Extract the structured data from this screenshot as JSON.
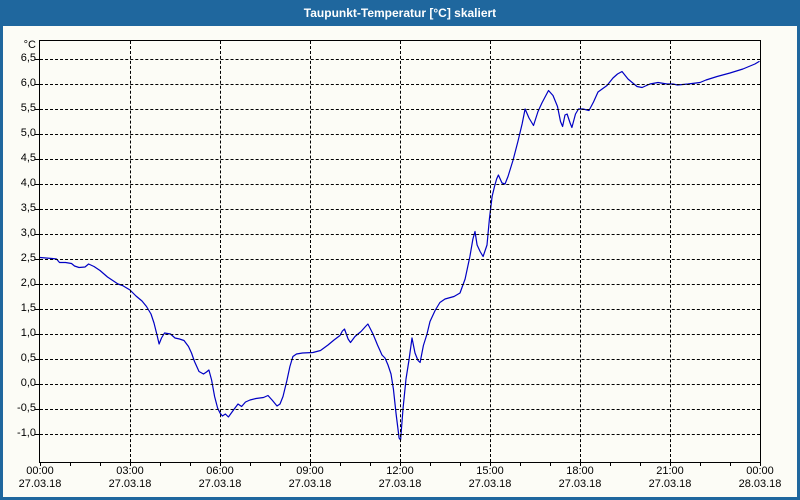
{
  "window": {
    "title": "Taupunkt-Temperatur [°C] skaliert"
  },
  "colors": {
    "titlebar_bg": "#1f679e",
    "window_border": "#1f679e",
    "content_bg": "#fcfcf6",
    "curve": "#0000c4",
    "grid": "#000000",
    "text": "#000000",
    "title_text": "#ffffff"
  },
  "chart_data": {
    "type": "line",
    "title": "Taupunkt-Temperatur [°C] skaliert",
    "ylabel": "°C",
    "xlabel": "",
    "grid": "dashed",
    "legend_position": "none",
    "ylim": [
      -1.56,
      6.86
    ],
    "xlim_hours": [
      0,
      24
    ],
    "y_axis": {
      "tick_values": [
        6.5,
        6.0,
        5.5,
        5.0,
        4.5,
        4.0,
        3.5,
        3.0,
        2.5,
        2.0,
        1.5,
        1.0,
        0.5,
        0.0,
        -0.5,
        -1.0
      ],
      "decimal_separator": ",",
      "unit": "°C"
    },
    "x_axis": {
      "minor_tick_interval_hours": 1,
      "major_ticks": [
        {
          "hour": 0,
          "time": "00:00",
          "date": "27.03.18"
        },
        {
          "hour": 3,
          "time": "03:00",
          "date": "27.03.18"
        },
        {
          "hour": 6,
          "time": "06:00",
          "date": "27.03.18"
        },
        {
          "hour": 9,
          "time": "09:00",
          "date": "27.03.18"
        },
        {
          "hour": 12,
          "time": "12:00",
          "date": "27.03.18"
        },
        {
          "hour": 15,
          "time": "15:00",
          "date": "27.03.18"
        },
        {
          "hour": 18,
          "time": "18:00",
          "date": "27.03.18"
        },
        {
          "hour": 21,
          "time": "21:00",
          "date": "27.03.18"
        },
        {
          "hour": 24,
          "time": "00:00",
          "date": "28.03.18"
        }
      ]
    },
    "series": [
      {
        "name": "Taupunkt-Temperatur",
        "unit": "°C",
        "color": "#0000c4",
        "points_hour_degC": [
          [
            0,
            2.53
          ],
          [
            0.4,
            2.51
          ],
          [
            0.55,
            2.5
          ],
          [
            0.65,
            2.43
          ],
          [
            0.85,
            2.43
          ],
          [
            1.05,
            2.41
          ],
          [
            1.15,
            2.36
          ],
          [
            1.3,
            2.33
          ],
          [
            1.5,
            2.34
          ],
          [
            1.62,
            2.4
          ],
          [
            1.8,
            2.35
          ],
          [
            2.0,
            2.27
          ],
          [
            2.25,
            2.14
          ],
          [
            2.45,
            2.06
          ],
          [
            2.6,
            2.0
          ],
          [
            2.75,
            1.97
          ],
          [
            3.0,
            1.88
          ],
          [
            3.2,
            1.76
          ],
          [
            3.4,
            1.66
          ],
          [
            3.55,
            1.55
          ],
          [
            3.7,
            1.4
          ],
          [
            3.8,
            1.22
          ],
          [
            3.9,
            0.98
          ],
          [
            3.97,
            0.8
          ],
          [
            4.05,
            0.92
          ],
          [
            4.15,
            1.02
          ],
          [
            4.35,
            1.0
          ],
          [
            4.5,
            0.92
          ],
          [
            4.65,
            0.9
          ],
          [
            4.8,
            0.87
          ],
          [
            4.95,
            0.75
          ],
          [
            5.05,
            0.62
          ],
          [
            5.15,
            0.45
          ],
          [
            5.3,
            0.25
          ],
          [
            5.45,
            0.2
          ],
          [
            5.55,
            0.24
          ],
          [
            5.63,
            0.28
          ],
          [
            5.72,
            0.08
          ],
          [
            5.82,
            -0.25
          ],
          [
            5.92,
            -0.48
          ],
          [
            6.0,
            -0.58
          ],
          [
            6.08,
            -0.64
          ],
          [
            6.18,
            -0.6
          ],
          [
            6.28,
            -0.66
          ],
          [
            6.45,
            -0.52
          ],
          [
            6.6,
            -0.4
          ],
          [
            6.72,
            -0.45
          ],
          [
            6.85,
            -0.36
          ],
          [
            7.0,
            -0.32
          ],
          [
            7.2,
            -0.29
          ],
          [
            7.45,
            -0.27
          ],
          [
            7.6,
            -0.23
          ],
          [
            7.75,
            -0.33
          ],
          [
            7.9,
            -0.44
          ],
          [
            8.0,
            -0.4
          ],
          [
            8.1,
            -0.25
          ],
          [
            8.23,
            0.07
          ],
          [
            8.33,
            0.35
          ],
          [
            8.43,
            0.55
          ],
          [
            8.55,
            0.6
          ],
          [
            8.75,
            0.62
          ],
          [
            9.1,
            0.63
          ],
          [
            9.35,
            0.67
          ],
          [
            9.6,
            0.78
          ],
          [
            9.8,
            0.88
          ],
          [
            10.0,
            0.97
          ],
          [
            10.08,
            1.06
          ],
          [
            10.15,
            1.1
          ],
          [
            10.27,
            0.9
          ],
          [
            10.35,
            0.83
          ],
          [
            10.5,
            0.95
          ],
          [
            10.7,
            1.05
          ],
          [
            10.85,
            1.15
          ],
          [
            10.93,
            1.2
          ],
          [
            11.1,
            1.0
          ],
          [
            11.25,
            0.78
          ],
          [
            11.4,
            0.58
          ],
          [
            11.5,
            0.52
          ],
          [
            11.6,
            0.38
          ],
          [
            11.7,
            0.2
          ],
          [
            11.78,
            -0.1
          ],
          [
            11.87,
            -0.6
          ],
          [
            11.97,
            -1.08
          ],
          [
            12.02,
            -1.12
          ],
          [
            12.1,
            -0.5
          ],
          [
            12.2,
            0.1
          ],
          [
            12.3,
            0.48
          ],
          [
            12.4,
            0.92
          ],
          [
            12.5,
            0.62
          ],
          [
            12.6,
            0.47
          ],
          [
            12.67,
            0.43
          ],
          [
            12.78,
            0.77
          ],
          [
            12.9,
            1.0
          ],
          [
            13.0,
            1.25
          ],
          [
            13.17,
            1.47
          ],
          [
            13.33,
            1.63
          ],
          [
            13.5,
            1.7
          ],
          [
            13.8,
            1.75
          ],
          [
            14.0,
            1.82
          ],
          [
            14.17,
            2.1
          ],
          [
            14.33,
            2.55
          ],
          [
            14.43,
            2.9
          ],
          [
            14.5,
            3.05
          ],
          [
            14.57,
            2.78
          ],
          [
            14.67,
            2.65
          ],
          [
            14.77,
            2.55
          ],
          [
            14.9,
            2.78
          ],
          [
            14.98,
            3.3
          ],
          [
            15.07,
            3.75
          ],
          [
            15.15,
            3.95
          ],
          [
            15.22,
            4.1
          ],
          [
            15.28,
            4.18
          ],
          [
            15.4,
            4.02
          ],
          [
            15.5,
            4.0
          ],
          [
            15.6,
            4.15
          ],
          [
            15.77,
            4.48
          ],
          [
            15.93,
            4.85
          ],
          [
            16.07,
            5.2
          ],
          [
            16.17,
            5.5
          ],
          [
            16.3,
            5.32
          ],
          [
            16.45,
            5.17
          ],
          [
            16.6,
            5.45
          ],
          [
            16.73,
            5.62
          ],
          [
            16.95,
            5.87
          ],
          [
            17.1,
            5.77
          ],
          [
            17.25,
            5.55
          ],
          [
            17.35,
            5.25
          ],
          [
            17.42,
            5.15
          ],
          [
            17.5,
            5.38
          ],
          [
            17.57,
            5.4
          ],
          [
            17.67,
            5.22
          ],
          [
            17.73,
            5.13
          ],
          [
            17.85,
            5.4
          ],
          [
            17.95,
            5.5
          ],
          [
            18.1,
            5.5
          ],
          [
            18.3,
            5.47
          ],
          [
            18.45,
            5.64
          ],
          [
            18.6,
            5.84
          ],
          [
            18.9,
            5.97
          ],
          [
            19.1,
            6.12
          ],
          [
            19.25,
            6.2
          ],
          [
            19.4,
            6.25
          ],
          [
            19.6,
            6.1
          ],
          [
            19.9,
            5.95
          ],
          [
            20.07,
            5.93
          ],
          [
            20.33,
            6.0
          ],
          [
            20.6,
            6.03
          ],
          [
            20.9,
            6.0
          ],
          [
            21.1,
            6.0
          ],
          [
            21.25,
            5.98
          ],
          [
            21.6,
            6.0
          ],
          [
            22.0,
            6.03
          ],
          [
            22.2,
            6.08
          ],
          [
            22.57,
            6.15
          ],
          [
            23.0,
            6.22
          ],
          [
            23.43,
            6.3
          ],
          [
            23.83,
            6.4
          ],
          [
            23.97,
            6.45
          ]
        ]
      }
    ]
  }
}
